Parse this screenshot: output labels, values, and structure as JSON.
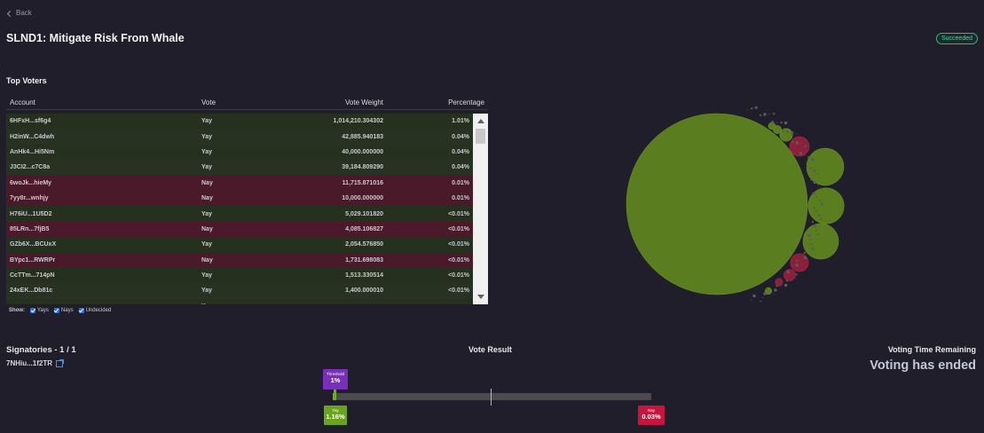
{
  "nav": {
    "back_label": "Back"
  },
  "proposal": {
    "title": "SLND1: Mitigate Risk From Whale",
    "status": "Succeeded"
  },
  "top_voters": {
    "title": "Top Voters",
    "columns": {
      "account": "Account",
      "vote": "Vote",
      "weight": "Vote Weight",
      "percentage": "Percentage"
    },
    "rows": [
      {
        "account": "6HFxH...sf6g4",
        "vote": "Yay",
        "weight": "1,014,210.304302",
        "pct": "1.01%"
      },
      {
        "account": "H2inW...C4dwh",
        "vote": "Yay",
        "weight": "42,885.940183",
        "pct": "0.04%"
      },
      {
        "account": "AnHk4...Hi5Nm",
        "vote": "Yay",
        "weight": "40,000.000000",
        "pct": "0.04%"
      },
      {
        "account": "J3CI2...c7C8a",
        "vote": "Yay",
        "weight": "39,184.809290",
        "pct": "0.04%"
      },
      {
        "account": "6woJk...hieMy",
        "vote": "Nay",
        "weight": "11,715.871016",
        "pct": "0.01%"
      },
      {
        "account": "7yy8r...wnhjy",
        "vote": "Nay",
        "weight": "10,000.000000",
        "pct": "0.01%"
      },
      {
        "account": "H76iU...1U5D2",
        "vote": "Yay",
        "weight": "5,029.101820",
        "pct": "<0.01%"
      },
      {
        "account": "85LRn...7fjB5",
        "vote": "Nay",
        "weight": "4,085.106827",
        "pct": "<0.01%"
      },
      {
        "account": "GZb6X...BCUxX",
        "vote": "Yay",
        "weight": "2,054.576850",
        "pct": "<0.01%"
      },
      {
        "account": "BYpc1...RWRPr",
        "vote": "Nay",
        "weight": "1,731.698083",
        "pct": "<0.01%"
      },
      {
        "account": "CcTTm...714pN",
        "vote": "Yay",
        "weight": "1,513.330514",
        "pct": "<0.01%"
      },
      {
        "account": "24xEK...Db81c",
        "vote": "Yay",
        "weight": "1,400.000010",
        "pct": "<0.01%"
      },
      {
        "account": "",
        "vote": "Yay",
        "weight": "",
        "pct": ""
      }
    ],
    "filters": {
      "show_label": "Show:",
      "yays": "Yays",
      "nays": "Nays",
      "undecided": "Undecided"
    }
  },
  "colors": {
    "yay": "#6bb01f",
    "nay": "#c6163f",
    "threshold": "#7a2fb8",
    "bubble_yay": "#5a7d20",
    "bubble_nay": "#8c1f3c"
  },
  "signatories": {
    "title": "Signatories - 1 / 1",
    "signer": "7NHiu...1f2TR"
  },
  "vote_result": {
    "title": "Vote Result",
    "threshold_label": "Threshold",
    "threshold_value": "1%",
    "yay_label": "Yay",
    "yay_value": "1.16%",
    "yay_fraction": 0.0116,
    "nay_label": "Nay",
    "nay_value": "0.03%"
  },
  "voting_time": {
    "title": "Voting Time Remaining",
    "status": "Voting has ended"
  },
  "bubble_chart": {
    "bubbles": [
      {
        "vote": "Yay",
        "weight": 1014210.304302,
        "label": "6HFxH...sf6g4"
      },
      {
        "vote": "Yay",
        "weight": 42885.940183,
        "label": "H2inW...C4dwh"
      },
      {
        "vote": "Yay",
        "weight": 40000.0,
        "label": "AnHk4...Hi5Nm"
      },
      {
        "vote": "Yay",
        "weight": 39184.80929,
        "label": "J3CI2...c7C8a"
      },
      {
        "vote": "Nay",
        "weight": 11715.871016,
        "label": ""
      },
      {
        "vote": "Nay",
        "weight": 10000.0,
        "label": ""
      },
      {
        "vote": "Yay",
        "weight": 5029.10182,
        "label": ""
      },
      {
        "vote": "Nay",
        "weight": 4085.106827,
        "label": ""
      },
      {
        "vote": "Yay",
        "weight": 2054.57685,
        "label": ""
      },
      {
        "vote": "Nay",
        "weight": 1731.698083,
        "label": ""
      },
      {
        "vote": "Yay",
        "weight": 1513.330514,
        "label": ""
      },
      {
        "vote": "Yay",
        "weight": 1400.00001,
        "label": ""
      }
    ]
  }
}
